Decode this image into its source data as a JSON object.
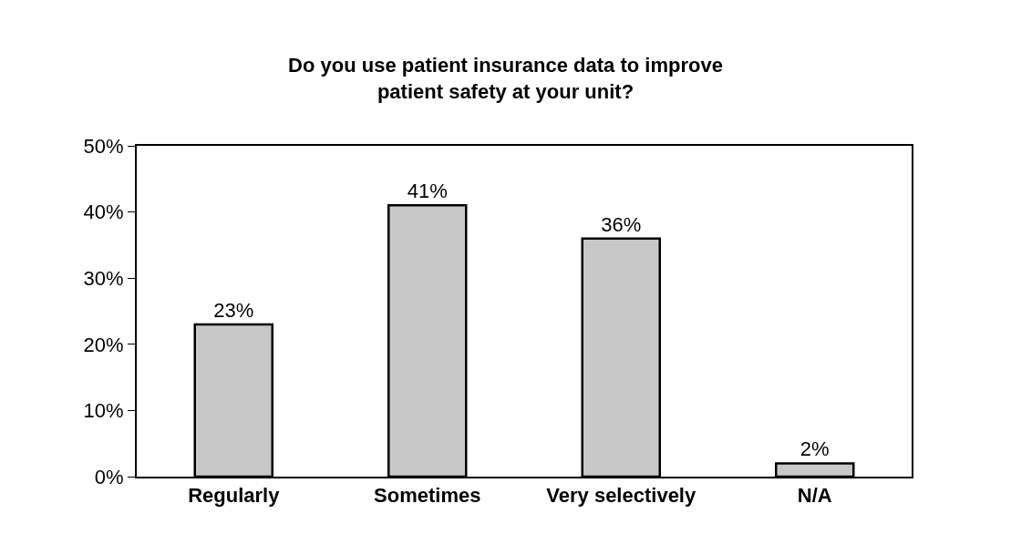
{
  "chart_data": {
    "type": "bar",
    "title": "Do you use patient insurance data to improve\npatient safety at your unit?",
    "categories": [
      "Regularly",
      "Sometimes",
      "Very selectively",
      "N/A"
    ],
    "values": [
      23,
      41,
      36,
      2
    ],
    "value_labels": [
      "23%",
      "41%",
      "36%",
      "2%"
    ],
    "color": "#c8c8c8",
    "ylim": [
      0,
      50
    ],
    "yticks": [
      {
        "value": 0,
        "label": "0%"
      },
      {
        "value": 10,
        "label": "10%"
      },
      {
        "value": 20,
        "label": "20%"
      },
      {
        "value": 30,
        "label": "30%"
      },
      {
        "value": 40,
        "label": "40%"
      },
      {
        "value": 50,
        "label": "50%"
      }
    ]
  }
}
